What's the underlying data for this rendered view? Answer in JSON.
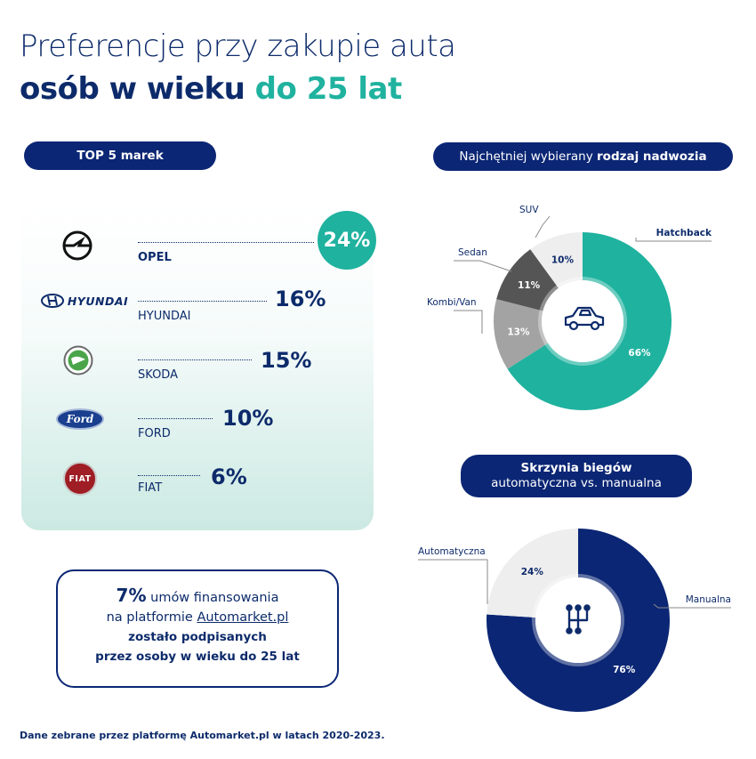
{
  "title": {
    "line1": "Preferencje przy zakupie auta",
    "line2_part1": "osób w wieku ",
    "line2_accent": "do 25 lat"
  },
  "brands_section": {
    "heading": "TOP 5 marek",
    "items": [
      {
        "name": "OPEL",
        "value": "24%",
        "share": 24,
        "icon": "opel-logo-icon"
      },
      {
        "name": "HYUNDAI",
        "value": "16%",
        "share": 16,
        "icon": "hyundai-logo-icon",
        "logo_text": "HYUNDAI"
      },
      {
        "name": "SKODA",
        "value": "15%",
        "share": 15,
        "icon": "skoda-logo-icon"
      },
      {
        "name": "FORD",
        "value": "10%",
        "share": 10,
        "icon": "ford-logo-icon",
        "logo_text": "Ford"
      },
      {
        "name": "FIAT",
        "value": "6%",
        "share": 6,
        "icon": "fiat-logo-icon",
        "logo_text": "FIAT"
      }
    ]
  },
  "body_section": {
    "heading_normal": "Najchętniej wybierany ",
    "heading_bold": "rodzaj nadwozia"
  },
  "gearbox_section": {
    "heading_line1": "Skrzynia biegów",
    "heading_line2": "automatyczna vs. manualna"
  },
  "financing_box": {
    "pct": "7%",
    "text1": " umów finansowania",
    "text2": "na platformie ",
    "link": "Automarket.pl",
    "text3": "zostało podpisanych",
    "text4": "przez osoby w wieku do 25 lat"
  },
  "footnote": "Dane zebrane przez platformę Automarket.pl w latach 2020-2023.",
  "chart_data": [
    {
      "type": "pie",
      "title": "Najchętniej wybierany rodzaj nadwozia",
      "categories": [
        "Hatchback",
        "Kombi/Van",
        "Sedan",
        "SUV"
      ],
      "values": [
        66,
        13,
        11,
        10
      ],
      "value_labels": [
        "66%",
        "13%",
        "11%",
        "10%"
      ],
      "colors": [
        "#1fb29f",
        "#a3a3a3",
        "#555555",
        "#eeeeee"
      ],
      "label_colors": [
        "#ffffff",
        "#ffffff",
        "#ffffff",
        "#0d2b6b"
      ],
      "center_icon": "car-icon"
    },
    {
      "type": "pie",
      "title": "Skrzynia biegów automatyczna vs. manualna",
      "categories": [
        "Manualna",
        "Automatyczna"
      ],
      "values": [
        76,
        24
      ],
      "value_labels": [
        "76%",
        "24%"
      ],
      "colors": [
        "#0b2674",
        "#eeeeee"
      ],
      "label_colors": [
        "#ffffff",
        "#0d2b6b"
      ],
      "center_icon": "gear-shift-icon"
    }
  ]
}
